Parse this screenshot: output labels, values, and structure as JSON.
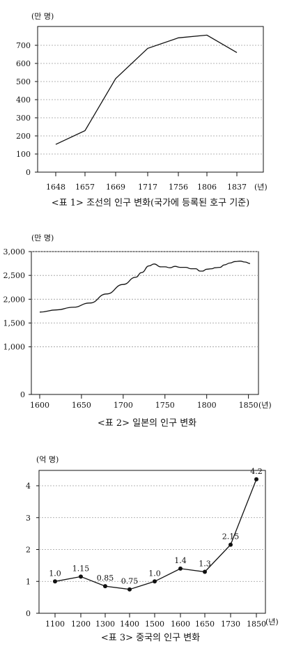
{
  "chart_data": [
    {
      "type": "line",
      "unit_label": "(만 명)",
      "x_unit": "(년)",
      "caption": "<표 1> 조선의 인구 변화(국가에 등록된 호구 기준)",
      "yticks": [
        0,
        100,
        200,
        300,
        400,
        500,
        600,
        700
      ],
      "ylim": [
        0,
        800
      ],
      "categories": [
        "1648",
        "1657",
        "1669",
        "1717",
        "1756",
        "1806",
        "1837"
      ],
      "values": [
        153,
        229,
        516,
        683,
        741,
        756,
        660
      ],
      "grid": true
    },
    {
      "type": "line",
      "unit_label": "(만 명)",
      "x_unit": "(년)",
      "caption": "<표 2> 일본의 인구 변화",
      "yticks": [
        "0",
        "1,000",
        "1,500",
        "2,000",
        "2,500",
        "3,000"
      ],
      "ytick_values": [
        0,
        1000,
        1500,
        2000,
        2500,
        3000
      ],
      "xticks": [
        1600,
        1650,
        1700,
        1750,
        1800,
        1850
      ],
      "xlim": [
        1590,
        1862
      ],
      "grid": true,
      "x": [
        1600,
        1620,
        1640,
        1660,
        1680,
        1700,
        1715,
        1722,
        1731,
        1737,
        1745,
        1750,
        1756,
        1762,
        1768,
        1775,
        1781,
        1787,
        1792,
        1795,
        1800,
        1806,
        1810,
        1816,
        1821,
        1828,
        1834,
        1840,
        1846,
        1852
      ],
      "values": [
        1730,
        1775,
        1830,
        1920,
        2110,
        2310,
        2460,
        2560,
        2700,
        2740,
        2680,
        2680,
        2660,
        2690,
        2670,
        2670,
        2640,
        2640,
        2590,
        2590,
        2630,
        2640,
        2660,
        2670,
        2720,
        2760,
        2790,
        2800,
        2780,
        2750
      ]
    },
    {
      "type": "line",
      "unit_label": "(억 명)",
      "x_unit": "(년)",
      "caption": "<표 3> 중국의 인구 변화",
      "yticks": [
        0,
        1,
        2,
        3,
        4
      ],
      "ylim": [
        0,
        4.4
      ],
      "grid": true,
      "categories": [
        "1100",
        "1200",
        "1300",
        "1400",
        "1500",
        "1600",
        "1650",
        "1730",
        "1850"
      ],
      "values": [
        1.0,
        1.15,
        0.85,
        0.75,
        1.0,
        1.4,
        1.3,
        2.15,
        4.2
      ],
      "data_labels": [
        "1.0",
        "1.15",
        "0.85",
        "0.75",
        "1.0",
        "1.4",
        "1.3",
        "2.15",
        "4.2"
      ]
    }
  ]
}
